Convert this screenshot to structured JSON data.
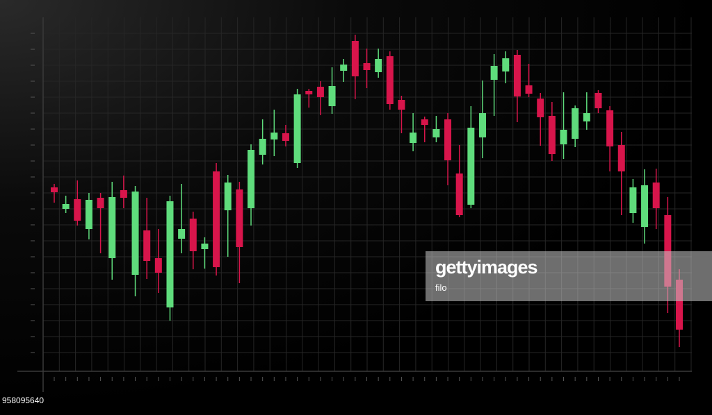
{
  "chart_data": {
    "type": "candlestick",
    "open": [
      261,
      230,
      244,
      201,
      246,
      159,
      257,
      135,
      199,
      159,
      88,
      187,
      216,
      172,
      284,
      228,
      258,
      231,
      308,
      330,
      339,
      296,
      400,
      406,
      378,
      429,
      472,
      440,
      427,
      450,
      387,
      325,
      359,
      333,
      359,
      281,
      236,
      333,
      416,
      428,
      452,
      408,
      389,
      364,
      323,
      331,
      356,
      397,
      372,
      322,
      224,
      204,
      268,
      221,
      128
    ],
    "high": [
      266,
      249,
      271,
      253,
      253,
      269,
      278,
      263,
      246,
      201,
      249,
      266,
      226,
      189,
      296,
      279,
      269,
      323,
      359,
      373,
      351,
      403,
      403,
      414,
      434,
      446,
      481,
      461,
      461,
      457,
      393,
      368,
      363,
      364,
      368,
      322,
      378,
      415,
      453,
      457,
      459,
      439,
      397,
      384,
      398,
      379,
      398,
      401,
      378,
      341,
      273,
      287,
      288,
      247,
      143
    ],
    "low": [
      239,
      224,
      206,
      186,
      166,
      128,
      231,
      104,
      129,
      109,
      69,
      166,
      143,
      144,
      134,
      161,
      123,
      206,
      294,
      306,
      320,
      289,
      376,
      365,
      367,
      413,
      388,
      404,
      419,
      373,
      339,
      313,
      326,
      326,
      264,
      218,
      231,
      303,
      364,
      411,
      355,
      391,
      321,
      299,
      302,
      319,
      344,
      368,
      284,
      221,
      210,
      180,
      201,
      80,
      31
    ],
    "close": [
      254,
      237,
      213,
      243,
      231,
      247,
      246,
      255,
      155,
      138,
      241,
      201,
      169,
      180,
      146,
      268,
      175,
      315,
      331,
      340,
      328,
      395,
      395,
      391,
      407,
      438,
      421,
      430,
      446,
      381,
      373,
      340,
      351,
      345,
      300,
      221,
      347,
      368,
      436,
      447,
      392,
      396,
      362,
      309,
      344,
      375,
      368,
      375,
      320,
      284,
      261,
      264,
      231,
      118,
      56
    ],
    "up_color": "#5fdc7c",
    "down_color": "#d8154b",
    "ylim": [
      -4,
      506
    ],
    "yticks": [
      23,
      46,
      69,
      92,
      115,
      138,
      161,
      184,
      207,
      230,
      253,
      276,
      299,
      322,
      345,
      368,
      391,
      414,
      437,
      460,
      483
    ],
    "grid": true
  },
  "watermark": {
    "brand": "gettyimages",
    "credit": "filo",
    "id": "958095640"
  }
}
